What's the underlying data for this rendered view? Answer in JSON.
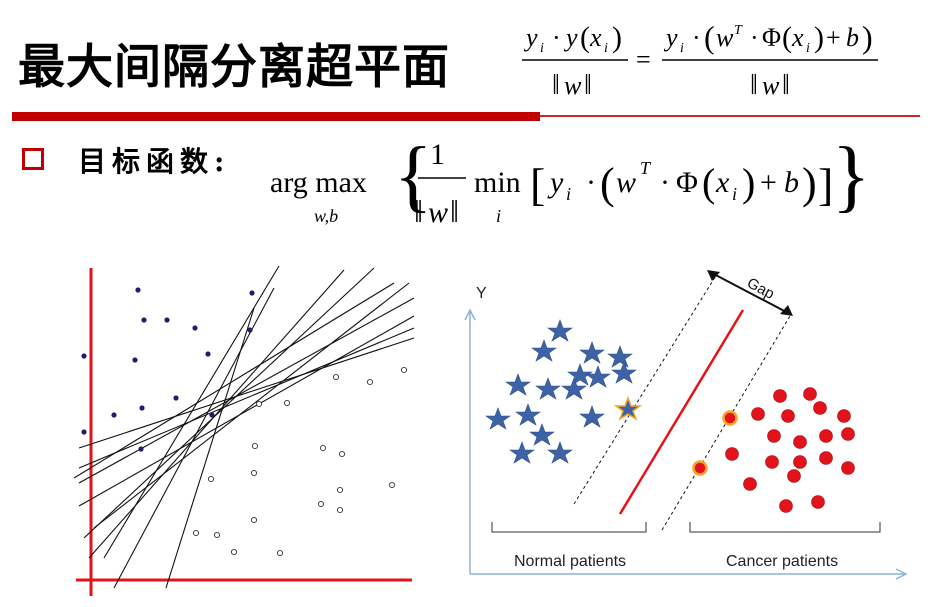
{
  "title": "最大间隔分离超平面",
  "formula_top": {
    "lhs_numerator_y": "y",
    "lhs_sub_i": "i",
    "lhs_dot": "·",
    "lhs_y": "y",
    "lhs_x": "x",
    "lhs_denominator": "w",
    "equals": "=",
    "rhs_numerator_y": "y",
    "rhs_w": "w",
    "rhs_T": "T",
    "rhs_phi": "Φ",
    "rhs_x": "x",
    "rhs_plus": "+",
    "rhs_b": "b",
    "rhs_denominator": "w"
  },
  "objective": {
    "label": "目标函数:",
    "argmax": "arg max",
    "argmax_sub": "w,b",
    "one": "1",
    "norm_w": "w",
    "min": "min",
    "min_sub": "i",
    "y": "y",
    "sub_i": "i",
    "w": "w",
    "T": "T",
    "phi": "Φ",
    "x": "x",
    "plus": "+",
    "b": "b",
    "dot": "·"
  },
  "right_figure": {
    "y_axis_label": "Y",
    "gap_label": "Gap",
    "normal_label": "Normal patients",
    "cancer_label": "Cancer patients",
    "colors": {
      "star": "#3d63a6",
      "dot": "#e3131b",
      "support": "#f2a627",
      "line": "#e3131b",
      "axis": "#8fb1d6"
    }
  },
  "left_figure": {
    "colors": {
      "axis": "#e3131b",
      "filled": "#1f1f6e",
      "lines": "#111111"
    }
  }
}
